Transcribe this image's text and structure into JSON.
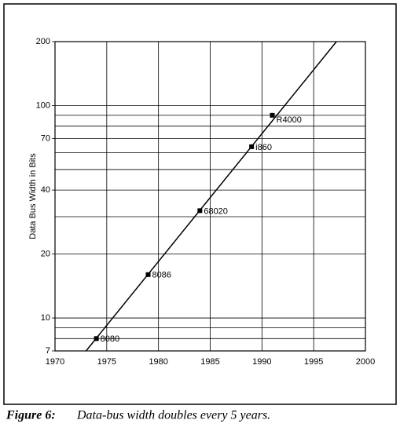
{
  "chart_data": {
    "type": "scatter",
    "y_label": "Data Bus Width in Bits",
    "caption_label": "Figure 6:",
    "caption_text": "Data-bus width doubles every 5 years.",
    "xlim": [
      1970,
      2000
    ],
    "xticks": [
      1970,
      1975,
      1980,
      1985,
      1990,
      1995,
      2000
    ],
    "ylim": [
      7,
      200
    ],
    "yticks": [
      7,
      10,
      20,
      40,
      70,
      100,
      200
    ],
    "ygrid": [
      7,
      8,
      9,
      10,
      20,
      30,
      40,
      50,
      60,
      70,
      80,
      90,
      100,
      200
    ],
    "log_y": true,
    "grid": true,
    "color": "#000000",
    "series": [
      {
        "x": [
          1974,
          1979,
          1984,
          1989,
          1991
        ],
        "values": [
          8,
          16,
          32,
          64,
          90
        ],
        "labels": [
          "8080",
          "8086",
          "68020",
          "i860",
          "R4000"
        ]
      }
    ],
    "trend": {
      "x": [
        1973,
        1997.2
      ],
      "values": [
        7,
        200
      ]
    }
  }
}
